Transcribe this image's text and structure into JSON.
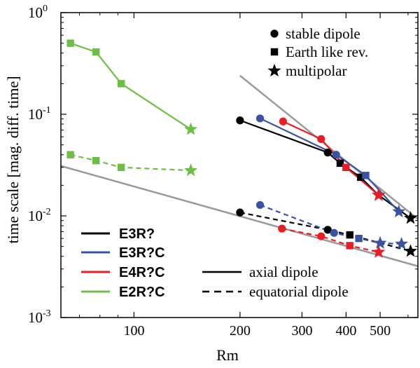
{
  "chart_data": {
    "type": "line",
    "xscale": "log",
    "yscale": "log",
    "xlim": [
      62,
      640
    ],
    "ylim": [
      0.001,
      1
    ],
    "xlabel": "Rm",
    "ylabel": "time scale [mag. diff. time]",
    "x_ticks": [
      {
        "value": 100,
        "label": "100"
      },
      {
        "value": 200,
        "label": "200"
      },
      {
        "value": 300,
        "label": "300"
      },
      {
        "value": 400,
        "label": "400"
      },
      {
        "value": 500,
        "label": "500"
      }
    ],
    "y_ticks": [
      {
        "value": 1,
        "base": "10",
        "exp": "0"
      },
      {
        "value": 0.1,
        "base": "10",
        "exp": "-1"
      },
      {
        "value": 0.01,
        "base": "10",
        "exp": "-2"
      },
      {
        "value": 0.001,
        "base": "10",
        "exp": "-3"
      }
    ],
    "marker_legend": [
      {
        "marker": "circle",
        "label": "stable dipole"
      },
      {
        "marker": "square",
        "label": "Earth like rev."
      },
      {
        "marker": "star",
        "label": "multipolar"
      }
    ],
    "series_legend": [
      {
        "label": "E3R?",
        "color": "#000000"
      },
      {
        "label": "E3R?C",
        "color": "#3953a4"
      },
      {
        "label": "E4R?C",
        "color": "#ed1c24"
      },
      {
        "label": "E2R?C",
        "color": "#6cbf44"
      }
    ],
    "style_legend": [
      {
        "style": "solid",
        "label": "axial dipole"
      },
      {
        "style": "dashed",
        "label": "equatorial dipole"
      }
    ],
    "series": [
      {
        "name": "E3R? axial",
        "color": "#000000",
        "style": "solid",
        "points": [
          {
            "x": 200,
            "y": 0.087,
            "m": "circle"
          },
          {
            "x": 355,
            "y": 0.042,
            "m": "circle"
          },
          {
            "x": 385,
            "y": 0.033,
            "m": "square"
          },
          {
            "x": 440,
            "y": 0.024,
            "m": "square"
          },
          {
            "x": 495,
            "y": 0.016,
            "m": "star"
          },
          {
            "x": 610,
            "y": 0.0095,
            "m": "star"
          }
        ]
      },
      {
        "name": "E3R?C axial",
        "color": "#3953a4",
        "style": "solid",
        "points": [
          {
            "x": 228,
            "y": 0.091,
            "m": "circle"
          },
          {
            "x": 375,
            "y": 0.04,
            "m": "circle"
          },
          {
            "x": 455,
            "y": 0.025,
            "m": "square"
          },
          {
            "x": 565,
            "y": 0.011,
            "m": "star"
          }
        ]
      },
      {
        "name": "E4R?C axial",
        "color": "#ed1c24",
        "style": "solid",
        "points": [
          {
            "x": 265,
            "y": 0.085,
            "m": "circle"
          },
          {
            "x": 340,
            "y": 0.057,
            "m": "circle"
          },
          {
            "x": 400,
            "y": 0.03,
            "m": "square"
          },
          {
            "x": 495,
            "y": 0.016,
            "m": "star"
          }
        ]
      },
      {
        "name": "E2R?C axial",
        "color": "#6cbf44",
        "style": "solid",
        "points": [
          {
            "x": 66,
            "y": 0.5,
            "m": "square"
          },
          {
            "x": 78,
            "y": 0.41,
            "m": "square"
          },
          {
            "x": 92,
            "y": 0.2,
            "m": "square"
          },
          {
            "x": 145,
            "y": 0.071,
            "m": "star"
          }
        ]
      },
      {
        "name": "E3R? equatorial",
        "color": "#000000",
        "style": "dashed",
        "points": [
          {
            "x": 200,
            "y": 0.0108,
            "m": "circle"
          },
          {
            "x": 355,
            "y": 0.0073,
            "m": "circle"
          },
          {
            "x": 410,
            "y": 0.0065,
            "m": "square"
          },
          {
            "x": 610,
            "y": 0.0045,
            "m": "star"
          }
        ]
      },
      {
        "name": "E3R?C equatorial",
        "color": "#3953a4",
        "style": "dashed",
        "points": [
          {
            "x": 228,
            "y": 0.0128,
            "m": "circle"
          },
          {
            "x": 370,
            "y": 0.0068,
            "m": "circle"
          },
          {
            "x": 435,
            "y": 0.006,
            "m": "square"
          },
          {
            "x": 500,
            "y": 0.0054,
            "m": "star"
          },
          {
            "x": 575,
            "y": 0.0053,
            "m": "star"
          }
        ]
      },
      {
        "name": "E4R?C equatorial",
        "color": "#ed1c24",
        "style": "dashed",
        "points": [
          {
            "x": 263,
            "y": 0.0075,
            "m": "circle"
          },
          {
            "x": 340,
            "y": 0.0063,
            "m": "circle"
          },
          {
            "x": 410,
            "y": 0.0051,
            "m": "square"
          },
          {
            "x": 495,
            "y": 0.0044,
            "m": "star"
          }
        ]
      },
      {
        "name": "E2R?C equatorial",
        "color": "#6cbf44",
        "style": "dashed",
        "points": [
          {
            "x": 66,
            "y": 0.04,
            "m": "square"
          },
          {
            "x": 78,
            "y": 0.035,
            "m": "square"
          },
          {
            "x": 92,
            "y": 0.03,
            "m": "square"
          },
          {
            "x": 145,
            "y": 0.028,
            "m": "star"
          }
        ]
      }
    ],
    "reference_lines": [
      {
        "name": "steep gray fit",
        "color": "#999999",
        "points": [
          {
            "x": 200,
            "y": 0.24
          },
          {
            "x": 640,
            "y": 0.0093
          }
        ]
      },
      {
        "name": "shallow gray fit",
        "color": "#999999",
        "points": [
          {
            "x": 62,
            "y": 0.031
          },
          {
            "x": 640,
            "y": 0.0032
          }
        ]
      }
    ]
  }
}
